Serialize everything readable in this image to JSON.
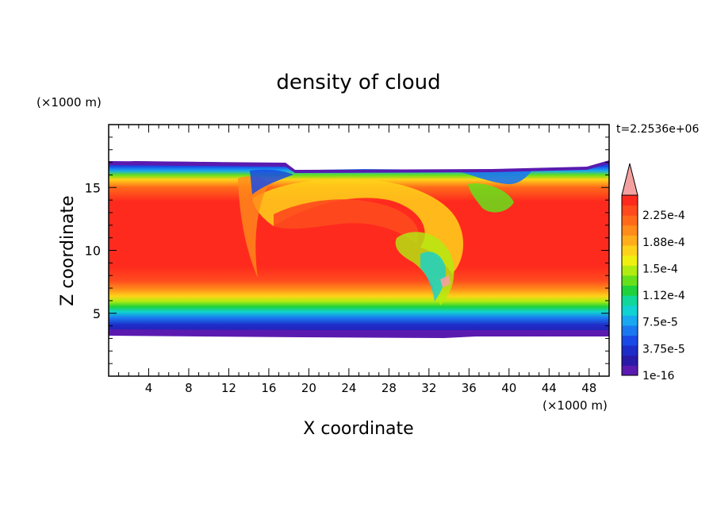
{
  "chart_data": {
    "type": "heatmap",
    "title": "density of cloud",
    "xlabel": "X coordinate",
    "ylabel": "Z coordinate",
    "x_unit": "(×1000 m)",
    "y_unit": "(×1000 m)",
    "time_label": "t=2.2536e+06",
    "xlim": [
      0,
      50
    ],
    "ylim": [
      0,
      20
    ],
    "x_ticks": [
      "4",
      "8",
      "12",
      "16",
      "20",
      "24",
      "28",
      "32",
      "36",
      "40",
      "44",
      "48"
    ],
    "y_ticks": [
      "5",
      "10",
      "15"
    ],
    "colorbar": {
      "labels": [
        "1e-16",
        "3.75e-5",
        "7.5e-5",
        "1.12e-4",
        "1.5e-4",
        "1.88e-4",
        "2.25e-4"
      ],
      "levels": [
        "#5a1ab0",
        "#2a1aa8",
        "#1e2cc8",
        "#1a4ae6",
        "#1a78f0",
        "#18a8f0",
        "#10d2d2",
        "#10d89a",
        "#1ed23c",
        "#66e01a",
        "#b0ec10",
        "#f0f010",
        "#ffd21a",
        "#ffae1a",
        "#ff8c1a",
        "#ff6a1a",
        "#ff4a1e",
        "#ff2a1e",
        "#f5a0a0"
      ]
    },
    "cloud_layer": {
      "z_bottom": 3.4,
      "z_top": 16.7,
      "z_max_core": [
        8.5,
        14.5
      ],
      "value_max": 0.000225
    }
  }
}
